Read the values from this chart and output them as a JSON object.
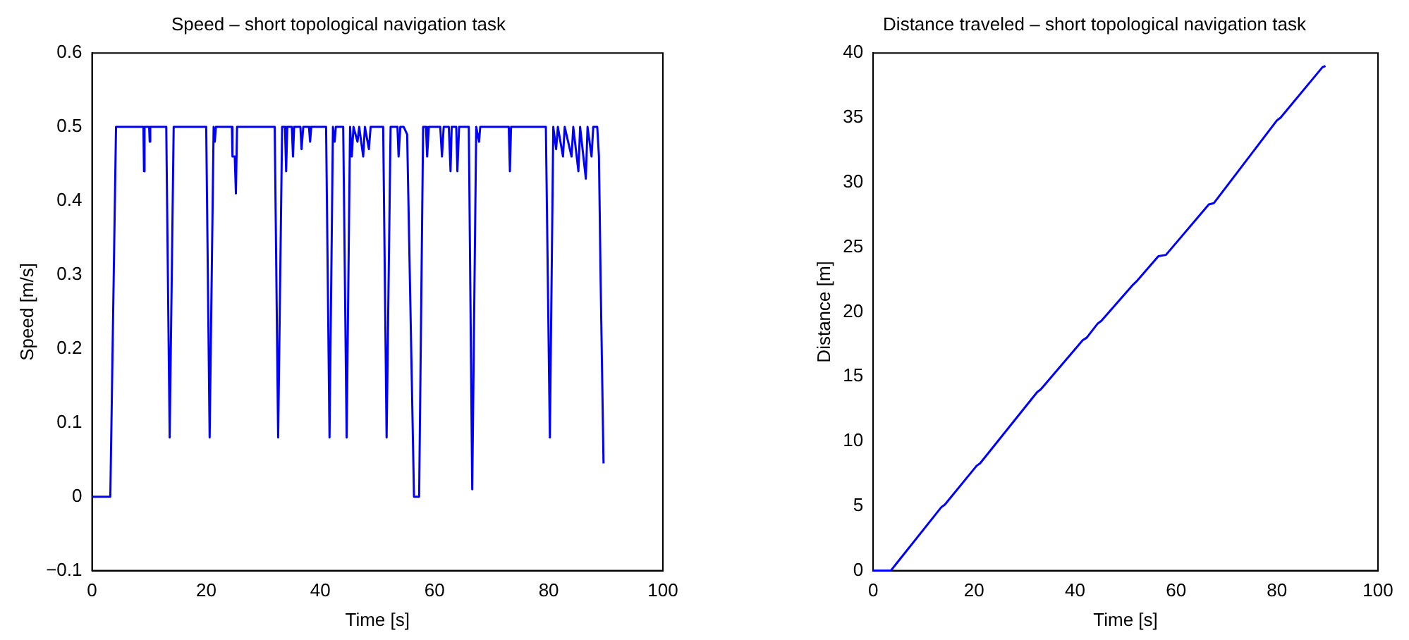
{
  "chart_data": [
    {
      "type": "line",
      "title": "Speed – short topological navigation task",
      "xlabel": "Time [s]",
      "ylabel": "Speed [m/s]",
      "xlim": [
        0,
        100
      ],
      "xticks": [
        0,
        20,
        40,
        60,
        80,
        100
      ],
      "ylim": [
        -0.1,
        0.6
      ],
      "yticks": [
        {
          "value": -0.1,
          "label": "−0.1"
        },
        0,
        0.1,
        0.2,
        0.3,
        0.4,
        0.5,
        0.6
      ],
      "grid": false,
      "marker": "none",
      "line_style": "solid",
      "series": [
        {
          "color": "#0000ff",
          "x": [
            0,
            3.2,
            4.2,
            9,
            9.1,
            9.2,
            10,
            10.1,
            10.2,
            13,
            13.6,
            14.3,
            20,
            20.6,
            21.3,
            21.5,
            21.7,
            24.5,
            24.6,
            25,
            25.2,
            25.4,
            32,
            32.6,
            33.3,
            33.8,
            34,
            34.2,
            35,
            35.2,
            35.4,
            36.5,
            36.7,
            37,
            38,
            38.2,
            38.4,
            41,
            41.6,
            42.2,
            42.5,
            42.7,
            44,
            44.6,
            45.2,
            45.5,
            45.8,
            46.5,
            46.8,
            47.5,
            47.8,
            48.5,
            48.8,
            51,
            51.6,
            52.3,
            53.5,
            53.7,
            54,
            54.6,
            55.2,
            56.4,
            57.3,
            58,
            58.5,
            58.7,
            59,
            61,
            61.3,
            61.6,
            62.5,
            62.8,
            63,
            63.8,
            64,
            64.3,
            66,
            66.6,
            67.3,
            67.8,
            68,
            73,
            73.2,
            73.4,
            79.5,
            80.2,
            80.8,
            81.3,
            81.6,
            82.5,
            82.8,
            84,
            84.3,
            85.2,
            85.5,
            86.5,
            86.8,
            87.5,
            87.8,
            88.5,
            88.8,
            89.1,
            89.6
          ],
          "values": [
            0,
            0,
            0.5,
            0.5,
            0.44,
            0.5,
            0.5,
            0.48,
            0.5,
            0.5,
            0.08,
            0.5,
            0.5,
            0.08,
            0.5,
            0.48,
            0.5,
            0.5,
            0.46,
            0.46,
            0.41,
            0.5,
            0.5,
            0.08,
            0.5,
            0.5,
            0.44,
            0.5,
            0.5,
            0.46,
            0.5,
            0.5,
            0.47,
            0.5,
            0.5,
            0.48,
            0.5,
            0.5,
            0.08,
            0.5,
            0.48,
            0.5,
            0.5,
            0.08,
            0.5,
            0.46,
            0.5,
            0.48,
            0.5,
            0.46,
            0.5,
            0.47,
            0.5,
            0.5,
            0.08,
            0.5,
            0.5,
            0.46,
            0.5,
            0.5,
            0.49,
            0,
            0,
            0.5,
            0.5,
            0.46,
            0.5,
            0.5,
            0.46,
            0.5,
            0.5,
            0.44,
            0.5,
            0.5,
            0.44,
            0.5,
            0.5,
            0.01,
            0.5,
            0.48,
            0.5,
            0.5,
            0.44,
            0.5,
            0.5,
            0.08,
            0.5,
            0.47,
            0.5,
            0.46,
            0.5,
            0.46,
            0.5,
            0.44,
            0.5,
            0.43,
            0.5,
            0.46,
            0.5,
            0.5,
            0.46,
            0.29,
            0.045
          ]
        }
      ]
    },
    {
      "type": "line",
      "title": "Distance traveled – short topological navigation task",
      "xlabel": "Time [s]",
      "ylabel": "Distance [m]",
      "xlim": [
        0,
        100
      ],
      "xticks": [
        0,
        20,
        40,
        60,
        80,
        100
      ],
      "ylim": [
        0,
        40
      ],
      "yticks": [
        0,
        5,
        10,
        15,
        20,
        25,
        30,
        35,
        40
      ],
      "grid": false,
      "marker": "none",
      "line_style": "solid",
      "series": [
        {
          "color": "#0000ff",
          "x": [
            0,
            3.5,
            13.5,
            14.2,
            20.5,
            21.2,
            32.5,
            33.2,
            41.5,
            42.3,
            44.5,
            45.2,
            51.5,
            52.3,
            56.5,
            58,
            66.5,
            67.5,
            80,
            80.7,
            89,
            89.6
          ],
          "values": [
            0,
            0,
            4.9,
            5.1,
            8.1,
            8.3,
            13.8,
            14,
            17.8,
            18,
            19.1,
            19.3,
            22.1,
            22.4,
            24.3,
            24.4,
            28.3,
            28.4,
            34.8,
            35,
            38.9,
            39
          ]
        }
      ]
    }
  ]
}
